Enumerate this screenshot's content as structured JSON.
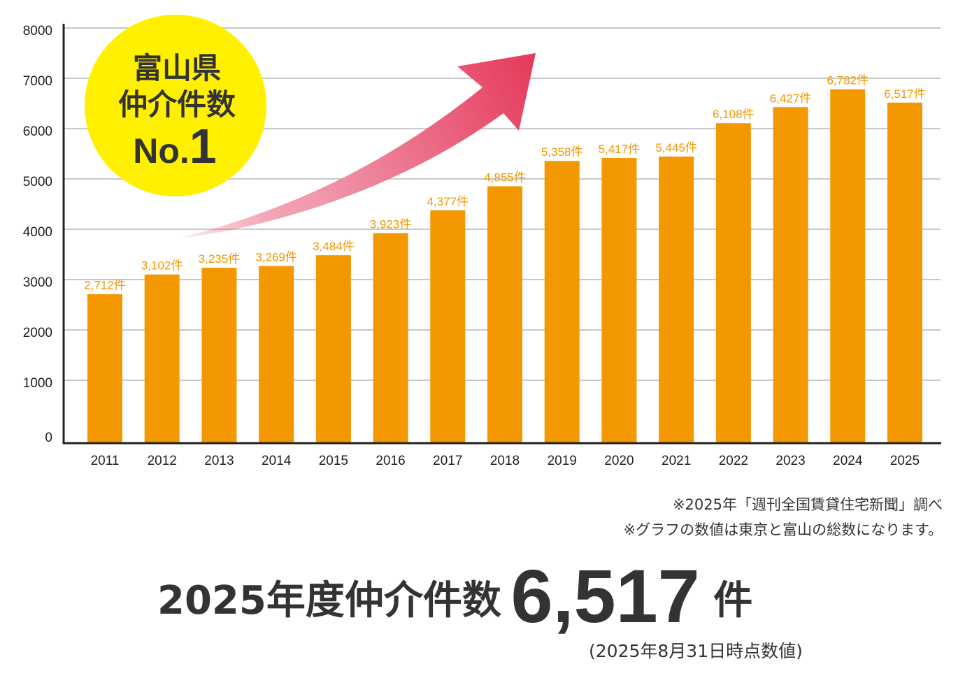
{
  "chart_data": {
    "type": "bar",
    "categories": [
      "2011",
      "2012",
      "2013",
      "2014",
      "2015",
      "2016",
      "2017",
      "2018",
      "2019",
      "2020",
      "2021",
      "2022",
      "2023",
      "2024",
      "2025"
    ],
    "values": [
      2712,
      3102,
      3235,
      3269,
      3484,
      3923,
      4377,
      4855,
      5358,
      5417,
      5445,
      6108,
      6427,
      6782,
      6517
    ],
    "data_labels": [
      "2,712件",
      "3,102件",
      "3,235件",
      "3,269件",
      "3,484件",
      "3,923件",
      "4,377件",
      "4,855件",
      "5,358件",
      "5,417件",
      "5,445件",
      "6,108件",
      "6,427件",
      "6,782件",
      "6,517件"
    ],
    "yticks": [
      "0",
      "1000",
      "2000",
      "3000",
      "4000",
      "5000",
      "6000",
      "7000",
      "8000"
    ],
    "ylim": [
      0,
      8000
    ],
    "grid": true,
    "colors": {
      "bar": "#f39800",
      "label": "#f39800",
      "badge": "#fff000",
      "arrow": "#e5395a"
    }
  },
  "badge": {
    "line1": "富山県",
    "line2": "仲介件数",
    "line3_prefix": "No.",
    "line3_num": "1"
  },
  "notes": [
    "※2025年「週刊全国賃貸住宅新聞」調べ",
    "※グラフの数値は東京と富山の総数になります。"
  ],
  "summary": {
    "label": "2025年度仲介件数",
    "value": "6,517",
    "unit": "件",
    "date_note": "(2025年8月31日時点数値)"
  }
}
